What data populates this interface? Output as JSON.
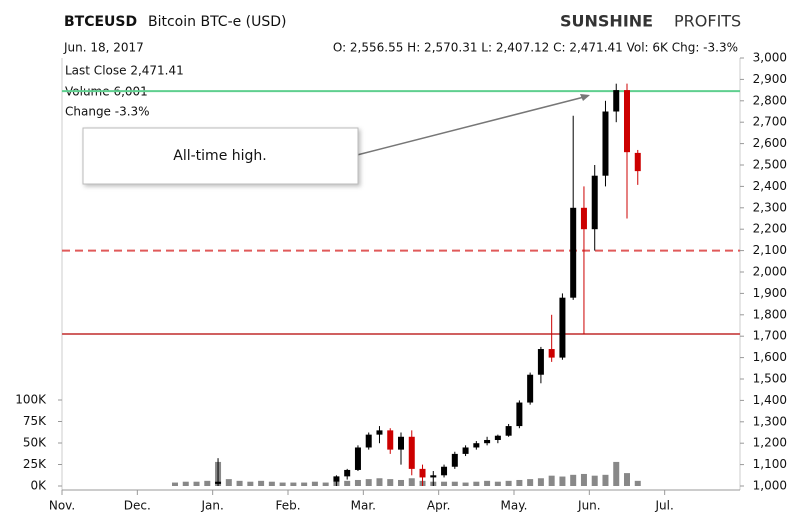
{
  "header": {
    "symbol": "BTCEUSD",
    "name": "Bitcoin BTC-e (USD)",
    "brand_bold": "SUNSHINE",
    "brand_light": "PROFITS",
    "date": "Jun. 18, 2017",
    "quote": "O: 2,556.55  H: 2,570.31  L: 2,407.12  C: 2,471.41  Vol: 6K  Chg: -3.3%"
  },
  "info": [
    "Last Close  2,471.41",
    "Volume  6,001",
    "Change  -3.3%"
  ],
  "chart_data": {
    "type": "candlestick",
    "categories": [
      "Nov.",
      null,
      null,
      null,
      null,
      null,
      null,
      "Dec.",
      null,
      null,
      null,
      null,
      null,
      null,
      "Jan.",
      null,
      null,
      null,
      null,
      null,
      null,
      "Feb.",
      null,
      null,
      null,
      null,
      null,
      null,
      "Mar.",
      null,
      null,
      null,
      null,
      null,
      null,
      "Apr.",
      null,
      null,
      null,
      null,
      null,
      null,
      "May.",
      null,
      null,
      null,
      null,
      null,
      null,
      "Jun.",
      null,
      null,
      null,
      null,
      null,
      null,
      "Jul.",
      null,
      null,
      null,
      null,
      null,
      null
    ],
    "open": [
      null,
      null,
      null,
      null,
      null,
      null,
      null,
      null,
      null,
      null,
      null,
      null,
      null,
      null,
      1010,
      null,
      null,
      null,
      null,
      null,
      null,
      null,
      null,
      null,
      null,
      1020,
      1045,
      1075,
      1180,
      1240,
      1260,
      1170,
      1230,
      1080,
      1040,
      1050,
      1090,
      1150,
      1180,
      1200,
      1215,
      1235,
      1280,
      1390,
      1520,
      1640,
      1600,
      1880,
      2300,
      2200,
      2450,
      2750,
      2850,
      2556.55,
      null,
      null,
      null,
      null,
      null,
      null,
      null,
      null,
      null
    ],
    "high": [
      null,
      null,
      null,
      null,
      null,
      null,
      null,
      null,
      null,
      null,
      null,
      null,
      null,
      null,
      1130,
      null,
      null,
      null,
      null,
      null,
      null,
      null,
      null,
      null,
      null,
      1050,
      1080,
      1190,
      1250,
      1280,
      1270,
      1250,
      1260,
      1100,
      1070,
      1100,
      1160,
      1190,
      1210,
      1230,
      1240,
      1290,
      1400,
      1530,
      1650,
      1800,
      1900,
      2730,
      2400,
      2500,
      2800,
      2880,
      2880,
      2570.31,
      null,
      null,
      null,
      null,
      null,
      null,
      null,
      null,
      null
    ],
    "low": [
      null,
      null,
      null,
      null,
      null,
      null,
      null,
      null,
      null,
      null,
      null,
      null,
      null,
      null,
      1000,
      null,
      null,
      null,
      null,
      null,
      null,
      null,
      null,
      null,
      null,
      1000,
      1030,
      1070,
      1170,
      1200,
      1150,
      1100,
      1050,
      1000,
      1000,
      1040,
      1080,
      1140,
      1170,
      1190,
      1200,
      1230,
      1270,
      1380,
      1480,
      1580,
      1590,
      1870,
      1710,
      2100,
      2400,
      2700,
      2250,
      2407.12,
      null,
      null,
      null,
      null,
      null,
      null,
      null,
      null,
      null
    ],
    "close": [
      null,
      null,
      null,
      null,
      null,
      null,
      null,
      null,
      null,
      null,
      null,
      null,
      null,
      null,
      1020,
      null,
      null,
      null,
      null,
      null,
      null,
      null,
      null,
      null,
      null,
      1045,
      1075,
      1180,
      1240,
      1260,
      1170,
      1230,
      1080,
      1040,
      1050,
      1090,
      1150,
      1180,
      1200,
      1215,
      1235,
      1280,
      1390,
      1520,
      1640,
      1600,
      1880,
      2300,
      2200,
      2450,
      2750,
      2850,
      2560,
      2471.41,
      null,
      null,
      null,
      null,
      null,
      null,
      null,
      null,
      null
    ],
    "up_color": "#000000",
    "down_color": "#cc0000",
    "ylim": [
      1000,
      3000
    ],
    "yticks": [
      {
        "value": 1000,
        "label": "1,000"
      },
      {
        "value": 1100,
        "label": "1,100"
      },
      {
        "value": 1200,
        "label": "1,200"
      },
      {
        "value": 1300,
        "label": "1,300"
      },
      {
        "value": 1400,
        "label": "1,400"
      },
      {
        "value": 1500,
        "label": "1,500"
      },
      {
        "value": 1600,
        "label": "1,600"
      },
      {
        "value": 1700,
        "label": "1,700"
      },
      {
        "value": 1800,
        "label": "1,800"
      },
      {
        "value": 1900,
        "label": "1,900"
      },
      {
        "value": 2000,
        "label": "2,000"
      },
      {
        "value": 2100,
        "label": "2,100"
      },
      {
        "value": 2200,
        "label": "2,200"
      },
      {
        "value": 2300,
        "label": "2,300"
      },
      {
        "value": 2400,
        "label": "2,400"
      },
      {
        "value": 2500,
        "label": "2,500"
      },
      {
        "value": 2600,
        "label": "2,600"
      },
      {
        "value": 2700,
        "label": "2,700"
      },
      {
        "value": 2800,
        "label": "2,800"
      },
      {
        "value": 2900,
        "label": "2,900"
      },
      {
        "value": 3000,
        "label": "3,000"
      }
    ],
    "volume": {
      "color": "#888888",
      "values": [
        null,
        null,
        null,
        null,
        null,
        null,
        null,
        null,
        null,
        null,
        4000,
        5000,
        5000,
        6000,
        28000,
        8000,
        6000,
        5000,
        6000,
        5000,
        4000,
        4000,
        4000,
        5000,
        4000,
        5000,
        6000,
        7000,
        8000,
        9000,
        8000,
        7000,
        9000,
        6000,
        5000,
        5000,
        5000,
        4000,
        5000,
        6000,
        5000,
        6000,
        7000,
        8000,
        9000,
        12000,
        11000,
        13000,
        14000,
        12000,
        13000,
        28000,
        15000,
        6001,
        null,
        null,
        null,
        null,
        null,
        null,
        null,
        null,
        null
      ],
      "ylim": [
        0,
        100000
      ],
      "yticks": [
        {
          "value": 0,
          "label": "0K"
        },
        {
          "value": 25000,
          "label": "25K"
        },
        {
          "value": 50000,
          "label": "50K"
        },
        {
          "value": 75000,
          "label": "75K"
        },
        {
          "value": 100000,
          "label": "100K"
        }
      ]
    },
    "hlines": [
      {
        "value": 2845,
        "color": "#5fcf8f",
        "dashed": false
      },
      {
        "value": 2100,
        "color": "#e05a5a",
        "dashed": true
      },
      {
        "value": 1710,
        "color": "#d06060",
        "dashed": false
      }
    ],
    "annotation": "All-time high."
  }
}
